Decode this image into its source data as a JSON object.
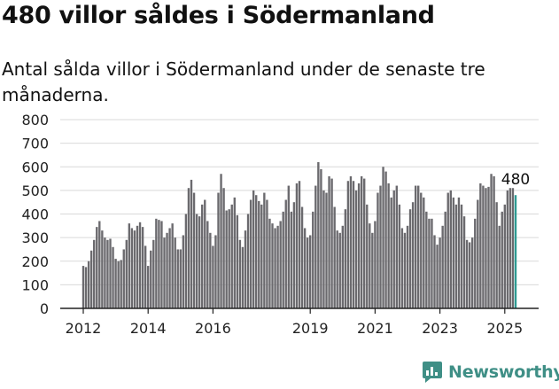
{
  "title": "480 villor såldes i Södermanland",
  "subtitle": "Antal sålda villor i Södermanland under de senaste tre månaderna.",
  "brand": {
    "name": "Newsworthy",
    "icon": "newsworthy-logo-icon",
    "color": "#3f8f86"
  },
  "colors": {
    "bar": "#6b6a6e",
    "highlight": "#2e9a92",
    "grid": "#d9d9d9",
    "axis": "#222222"
  },
  "chart_data": {
    "type": "bar",
    "title": "",
    "xlabel": "",
    "ylabel": "",
    "ylim": [
      0,
      800
    ],
    "yticks": [
      "0",
      "100",
      "200",
      "300",
      "400",
      "500",
      "600",
      "700",
      "800"
    ],
    "xticks": [
      {
        "label": "2012",
        "index": 0
      },
      {
        "label": "2014",
        "index": 24
      },
      {
        "label": "2016",
        "index": 48
      },
      {
        "label": "2019",
        "index": 84
      },
      {
        "label": "2021",
        "index": 108
      },
      {
        "label": "2023",
        "index": 132
      },
      {
        "label": "2025",
        "index": 156
      }
    ],
    "highlight_label": "480",
    "series": [
      {
        "values": [
          180,
          175,
          200,
          245,
          290,
          345,
          370,
          330,
          300,
          290,
          295,
          260,
          210,
          200,
          205,
          250,
          290,
          360,
          340,
          330,
          350,
          365,
          345,
          265,
          180,
          245,
          290,
          380,
          375,
          370,
          300,
          320,
          340,
          360,
          300,
          250,
          250,
          310,
          400,
          510,
          545,
          490,
          400,
          390,
          440,
          460,
          370,
          320,
          265,
          310,
          490,
          570,
          510,
          415,
          420,
          440,
          470,
          395,
          290,
          260,
          330,
          400,
          460,
          500,
          480,
          455,
          440,
          490,
          460,
          380,
          360,
          340,
          350,
          370,
          410,
          460,
          520,
          410,
          450,
          530,
          540,
          430,
          340,
          300,
          310,
          410,
          520,
          620,
          590,
          500,
          490,
          560,
          550,
          430,
          330,
          320,
          350,
          420,
          540,
          560,
          540,
          500,
          530,
          560,
          550,
          440,
          360,
          320,
          370,
          490,
          520,
          600,
          580,
          530,
          470,
          500,
          520,
          440,
          340,
          320,
          350,
          420,
          450,
          520,
          520,
          490,
          470,
          410,
          380,
          380,
          310,
          270,
          300,
          350,
          410,
          490,
          500,
          470,
          440,
          470,
          440,
          390,
          290,
          280,
          300,
          380,
          460,
          530,
          520,
          510,
          515,
          570,
          560,
          450,
          350,
          410,
          440,
          500,
          510,
          510,
          480
        ]
      }
    ]
  }
}
